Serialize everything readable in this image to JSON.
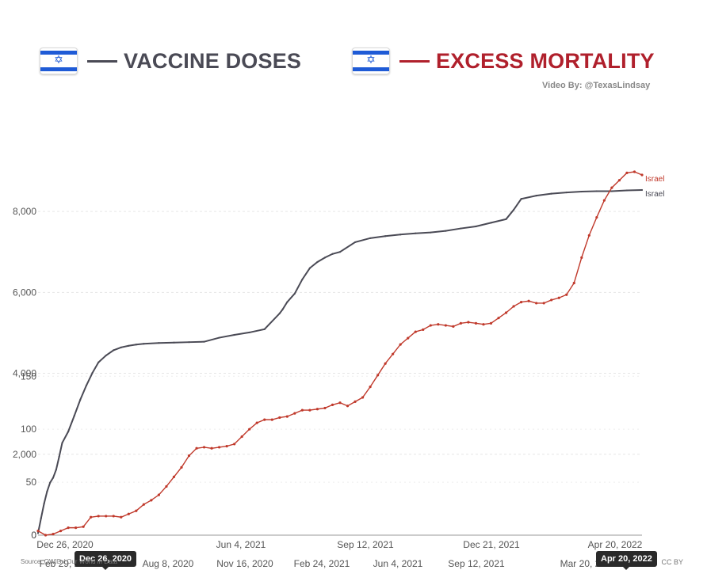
{
  "header": {
    "left_title": "VACCINE DOSES",
    "right_title": "EXCESS MORTALITY",
    "credit": "Video By: @TexasLindsay",
    "flag_icon": "israel-flag-icon"
  },
  "colors": {
    "vaccine": "#4a4a55",
    "mortality": "#b0202c",
    "mortality_line": "#c0392b"
  },
  "footer": {
    "source_text": "Source: OWID / Our World in Data",
    "license": "CC BY"
  },
  "hover_tags": {
    "left": "Dec 26, 2020",
    "right": "Apr 20, 2022"
  },
  "chart_data": {
    "type": "line",
    "y_ticks_outer": [
      "8,000",
      "6,000",
      "4,000",
      "2,000",
      "0"
    ],
    "y_ticks_inner": [
      "150",
      "100",
      "50",
      "0"
    ],
    "x_ticks_top": [
      "Dec 26, 2020",
      "Jun 4, 2021",
      "Sep 12, 2021",
      "Dec 21, 2021",
      "Apr 20, 2022"
    ],
    "x_ticks_bottom": [
      "Feb 29, 2020",
      "Aug 8, 2020",
      "Nov 16, 2020",
      "Feb 24, 2021",
      "Jun 4, 2021",
      "Sep 12, 2021",
      "Mar 20, 2022"
    ],
    "series": [
      {
        "name": "Israel",
        "kind": "vaccine",
        "x": [
          0,
          2,
          4,
          6,
          8,
          10,
          12,
          14,
          16,
          20,
          24,
          28,
          32,
          36,
          40,
          45,
          50,
          55,
          60,
          65,
          70,
          80,
          90,
          100,
          110,
          120,
          130,
          140,
          150,
          160,
          162,
          165,
          170,
          175,
          180,
          185,
          190,
          195,
          200,
          210,
          220,
          230,
          240,
          250,
          260,
          270,
          280,
          290,
          300,
          310,
          315,
          320,
          330,
          340,
          350,
          360,
          370,
          380,
          390,
          400
        ],
        "y": [
          50,
          420,
          780,
          1080,
          1300,
          1420,
          1620,
          1940,
          2280,
          2560,
          2950,
          3350,
          3700,
          4010,
          4270,
          4440,
          4570,
          4640,
          4680,
          4710,
          4730,
          4750,
          4760,
          4770,
          4780,
          4880,
          4950,
          5010,
          5090,
          5480,
          5580,
          5760,
          5970,
          6320,
          6600,
          6750,
          6860,
          6950,
          7000,
          7240,
          7340,
          7390,
          7430,
          7460,
          7480,
          7520,
          7580,
          7630,
          7720,
          7810,
          8040,
          8310,
          8390,
          8440,
          8470,
          8490,
          8500,
          8500,
          8520,
          8530
        ]
      },
      {
        "name": "Israel",
        "kind": "mortality",
        "x": [
          0,
          5,
          10,
          15,
          20,
          25,
          30,
          35,
          40,
          45,
          50,
          55,
          60,
          65,
          70,
          75,
          80,
          85,
          90,
          95,
          100,
          105,
          110,
          115,
          120,
          125,
          130,
          135,
          140,
          145,
          150,
          155,
          160,
          165,
          170,
          175,
          180,
          185,
          190,
          195,
          200,
          205,
          210,
          215,
          220,
          225,
          230,
          235,
          240,
          245,
          250,
          255,
          260,
          265,
          270,
          275,
          280,
          285,
          290,
          295,
          300,
          305,
          310,
          315,
          320,
          325,
          330,
          335,
          340,
          345,
          350,
          355,
          360,
          365,
          370,
          375,
          380,
          385,
          390,
          395,
          400
        ],
        "y": [
          4,
          0,
          1,
          4,
          7,
          7,
          8,
          17,
          18,
          18,
          18,
          17,
          20,
          23,
          29,
          33,
          38,
          46,
          55,
          64,
          75,
          82,
          83,
          82,
          83,
          84,
          86,
          93,
          100,
          106,
          109,
          109,
          111,
          112,
          115,
          118,
          118,
          119,
          120,
          123,
          125,
          122,
          126,
          130,
          140,
          151,
          162,
          171,
          180,
          186,
          192,
          194,
          198,
          199,
          198,
          197,
          200,
          201,
          200,
          199,
          200,
          205,
          210,
          216,
          220,
          221,
          219,
          219,
          222,
          224,
          227,
          238,
          262,
          283,
          300,
          316,
          328,
          335,
          342,
          343,
          340
        ]
      }
    ]
  }
}
